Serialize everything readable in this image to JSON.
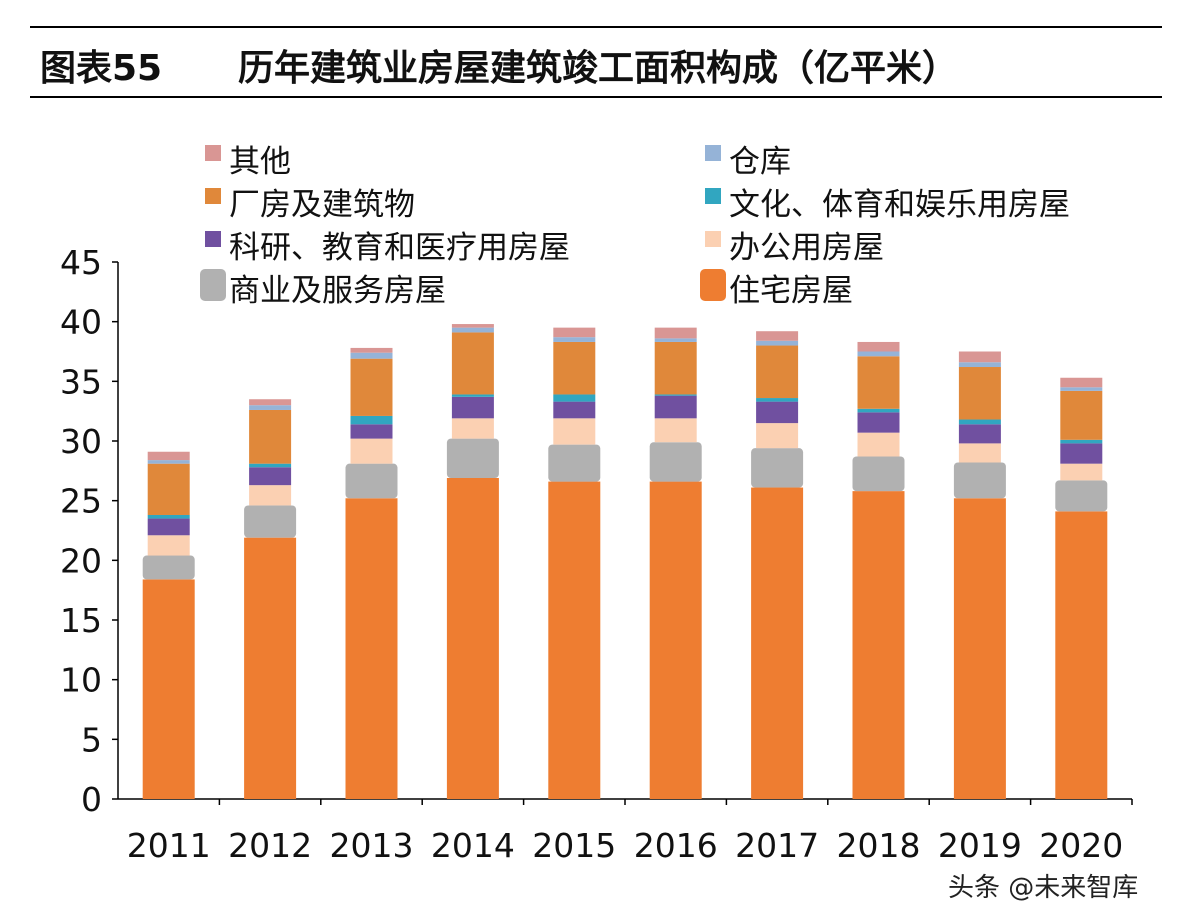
{
  "header": {
    "figure_label": "图表55",
    "title": "历年建筑业房屋建筑竣工面积构成（亿平米）"
  },
  "watermark": "头条 @未来智库",
  "chart_data": {
    "type": "bar",
    "stacked": true,
    "title": "历年建筑业房屋建筑竣工面积构成（亿平米）",
    "xlabel": "",
    "ylabel": "",
    "ylim": [
      0,
      45
    ],
    "yticks": [
      0,
      5,
      10,
      15,
      20,
      25,
      30,
      35,
      40,
      45
    ],
    "grid": false,
    "legend_position": "top",
    "categories": [
      "2011",
      "2012",
      "2013",
      "2014",
      "2015",
      "2016",
      "2017",
      "2018",
      "2019",
      "2020"
    ],
    "series": [
      {
        "name": "住宅房屋",
        "color": "#ee7d31",
        "values": [
          18.4,
          21.9,
          25.2,
          26.9,
          26.6,
          26.6,
          26.1,
          25.8,
          25.2,
          24.1
        ]
      },
      {
        "name": "商业及服务房屋",
        "color": "#b1b1b1",
        "values": [
          2.0,
          2.7,
          2.9,
          3.3,
          3.1,
          3.3,
          3.3,
          2.9,
          3.0,
          2.6
        ]
      },
      {
        "name": "办公用房屋",
        "color": "#fbd0b2",
        "values": [
          1.7,
          1.7,
          2.1,
          1.7,
          2.2,
          2.0,
          2.1,
          2.0,
          1.6,
          1.4
        ]
      },
      {
        "name": "科研、教育和医疗用房屋",
        "color": "#7050a0",
        "values": [
          1.4,
          1.5,
          1.2,
          1.8,
          1.4,
          1.9,
          1.8,
          1.7,
          1.6,
          1.7
        ]
      },
      {
        "name": "文化、体育和娱乐用房屋",
        "color": "#31a6c0",
        "values": [
          0.3,
          0.3,
          0.7,
          0.2,
          0.6,
          0.1,
          0.3,
          0.3,
          0.4,
          0.3
        ]
      },
      {
        "name": "厂房及建筑物",
        "color": "#e0883a",
        "values": [
          4.3,
          4.5,
          4.8,
          5.2,
          4.4,
          4.4,
          4.4,
          4.4,
          4.4,
          4.1
        ]
      },
      {
        "name": "仓库",
        "color": "#95b3d7",
        "values": [
          0.3,
          0.4,
          0.5,
          0.4,
          0.4,
          0.3,
          0.4,
          0.4,
          0.4,
          0.3
        ]
      },
      {
        "name": "其他",
        "color": "#d99694",
        "values": [
          0.7,
          0.5,
          0.4,
          0.3,
          0.8,
          0.9,
          0.8,
          0.8,
          0.9,
          0.8
        ]
      }
    ],
    "legend_order": [
      "其他",
      "仓库",
      "厂房及建筑物",
      "文化、体育和娱乐用房屋",
      "科研、教育和医疗用房屋",
      "办公用房屋",
      "商业及服务房屋",
      "住宅房屋"
    ]
  }
}
